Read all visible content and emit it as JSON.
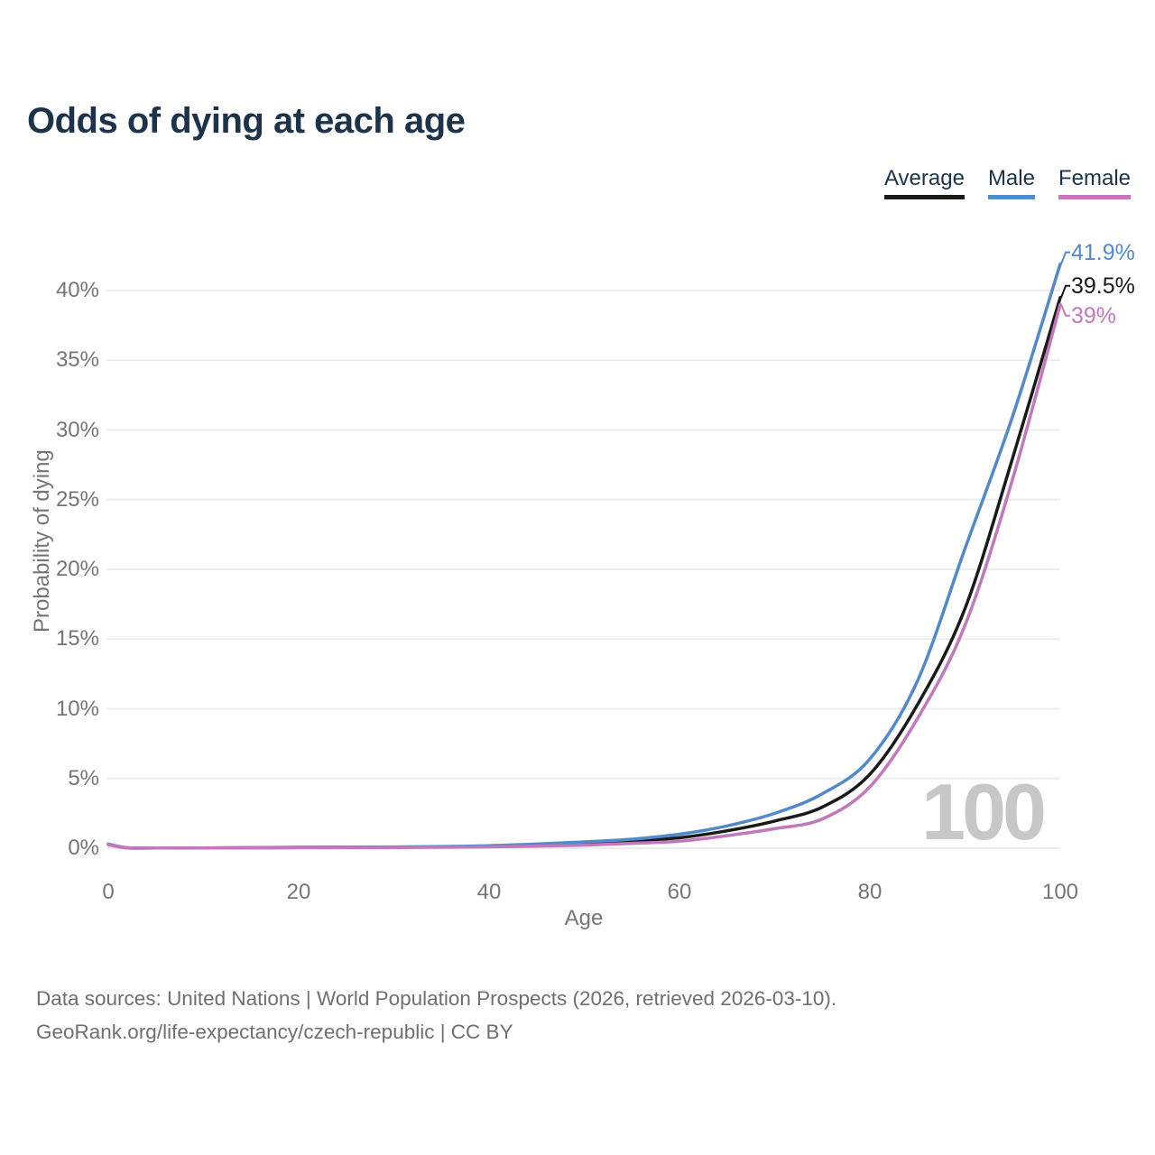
{
  "title": "Odds of dying at each age",
  "legend": {
    "items": [
      {
        "label": "Average",
        "color": "#1a1a1a"
      },
      {
        "label": "Male",
        "color": "#5289cc"
      },
      {
        "label": "Female",
        "color": "#c178bd"
      }
    ]
  },
  "chart_data": {
    "type": "line",
    "title": "Odds of dying at each age",
    "xlabel": "Age",
    "ylabel": "Probability of dying",
    "x_ticks": [
      0,
      20,
      40,
      60,
      80,
      100
    ],
    "y_ticks_percent": [
      0,
      5,
      10,
      15,
      20,
      25,
      30,
      35,
      40
    ],
    "xlim": [
      0,
      100
    ],
    "ylim_percent": [
      0,
      42.5
    ],
    "grid": "horizontal-only",
    "legend_position": "top-right",
    "watermark": "100",
    "x_ages": [
      0,
      2,
      5,
      10,
      15,
      20,
      25,
      30,
      35,
      40,
      45,
      50,
      55,
      60,
      65,
      70,
      75,
      80,
      85,
      90,
      95,
      100
    ],
    "series": [
      {
        "name": "Average",
        "color": "#1a1a1a",
        "end_label": "39.5%",
        "values_percent": [
          0.28,
          0.025,
          0.015,
          0.015,
          0.03,
          0.05,
          0.06,
          0.07,
          0.1,
          0.14,
          0.22,
          0.33,
          0.5,
          0.75,
          1.25,
          1.95,
          2.95,
          5.3,
          10.3,
          17.2,
          28.0,
          39.5
        ]
      },
      {
        "name": "Male",
        "color": "#5289cc",
        "end_label": "41.9%",
        "values_percent": [
          0.3,
          0.03,
          0.02,
          0.02,
          0.04,
          0.07,
          0.08,
          0.09,
          0.12,
          0.18,
          0.3,
          0.45,
          0.65,
          1.0,
          1.6,
          2.5,
          3.9,
          6.4,
          12.0,
          21.5,
          31.0,
          41.9
        ]
      },
      {
        "name": "Female",
        "color": "#c178bd",
        "end_label": "39%",
        "values_percent": [
          0.25,
          0.02,
          0.01,
          0.01,
          0.02,
          0.03,
          0.04,
          0.05,
          0.07,
          0.1,
          0.15,
          0.22,
          0.35,
          0.5,
          0.9,
          1.4,
          2.1,
          4.4,
          9.3,
          16.0,
          26.5,
          39.0
        ]
      }
    ]
  },
  "footer": {
    "line1": "Data sources: United Nations | World Population Prospects (2026, retrieved 2026-03-10).",
    "line2": "GeoRank.org/life-expectancy/czech-republic | CC BY"
  }
}
